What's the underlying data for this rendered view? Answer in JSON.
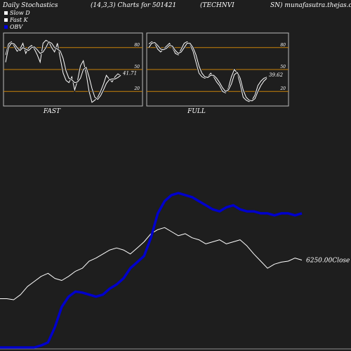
{
  "header": {
    "title": "Daily Stochastics",
    "params": "(14,3,3) Charts for 501421",
    "symbol": "(TECHNVI",
    "site": "SN) munafasutra.thejas.co"
  },
  "legend": [
    {
      "label": "Slow  D",
      "color": "#ffffff"
    },
    {
      "label": "Fast K",
      "color": "#ffffff"
    },
    {
      "label": "OBV",
      "color": "#0000dd"
    }
  ],
  "colors": {
    "background": "#1e1e1e",
    "guide": "#c8820a",
    "obv": "#0000cc",
    "price": "#ffffff"
  },
  "chart_data": [
    {
      "type": "line",
      "title": "FAST",
      "ylim": [
        0,
        100
      ],
      "guides": [
        80,
        50,
        20
      ],
      "ticks": [
        "80",
        "50",
        "20"
      ],
      "last_label": "41.71",
      "series": [
        {
          "name": "Fast K",
          "values": [
            70,
            85,
            88,
            82,
            75,
            78,
            86,
            72,
            80,
            83,
            78,
            70,
            60,
            86,
            90,
            88,
            80,
            74,
            86,
            65,
            45,
            35,
            32,
            40,
            22,
            35,
            55,
            62,
            44,
            20,
            5,
            8,
            12,
            20,
            30,
            42,
            37,
            33,
            40,
            44,
            41.71
          ]
        },
        {
          "name": "Slow  D",
          "values": [
            60,
            80,
            86,
            85,
            80,
            76,
            80,
            78,
            76,
            80,
            81,
            77,
            72,
            74,
            80,
            88,
            86,
            80,
            78,
            75,
            65,
            48,
            38,
            36,
            32,
            33,
            38,
            50,
            53,
            40,
            24,
            12,
            9,
            14,
            22,
            31,
            36,
            37,
            37,
            39,
            42
          ]
        }
      ]
    },
    {
      "type": "line",
      "title": "FULL",
      "ylim": [
        0,
        100
      ],
      "guides": [
        80,
        50,
        20
      ],
      "ticks": [
        "80",
        "50",
        "20"
      ],
      "last_label": "39.62",
      "series": [
        {
          "name": "Fast K",
          "values": [
            85,
            88,
            86,
            78,
            74,
            78,
            82,
            86,
            80,
            72,
            70,
            78,
            86,
            88,
            84,
            75,
            60,
            45,
            40,
            38,
            40,
            45,
            40,
            33,
            28,
            20,
            18,
            25,
            40,
            50,
            45,
            30,
            12,
            8,
            6,
            8,
            15,
            28,
            34,
            38,
            39.62
          ]
        },
        {
          "name": "Slow  D",
          "values": [
            80,
            86,
            87,
            83,
            78,
            77,
            79,
            83,
            82,
            76,
            72,
            74,
            80,
            86,
            86,
            80,
            70,
            55,
            45,
            40,
            39,
            42,
            42,
            38,
            32,
            25,
            20,
            22,
            30,
            43,
            46,
            38,
            22,
            12,
            8,
            7,
            10,
            20,
            28,
            34,
            38
          ]
        }
      ]
    },
    {
      "type": "line",
      "title": "",
      "last_label": "6250.00Close",
      "series": [
        {
          "name": "Close",
          "values": [
            8,
            8,
            7,
            12,
            20,
            25,
            30,
            33,
            28,
            26,
            30,
            35,
            38,
            45,
            48,
            52,
            56,
            58,
            56,
            52,
            58,
            64,
            72,
            76,
            78,
            74,
            70,
            72,
            68,
            66,
            62,
            64,
            66,
            62,
            64,
            66,
            60,
            52,
            45,
            38,
            42,
            44,
            45,
            48,
            46
          ]
        },
        {
          "name": "OBV",
          "values": [
            -40,
            -40,
            -40,
            -40,
            -40,
            -40,
            -38,
            -35,
            -20,
            0,
            10,
            15,
            14,
            12,
            10,
            12,
            18,
            22,
            28,
            38,
            44,
            50,
            68,
            92,
            104,
            110,
            112,
            110,
            108,
            104,
            100,
            96,
            94,
            98,
            100,
            96,
            94,
            94,
            92,
            92,
            90,
            92,
            92,
            90,
            92
          ]
        }
      ]
    }
  ]
}
